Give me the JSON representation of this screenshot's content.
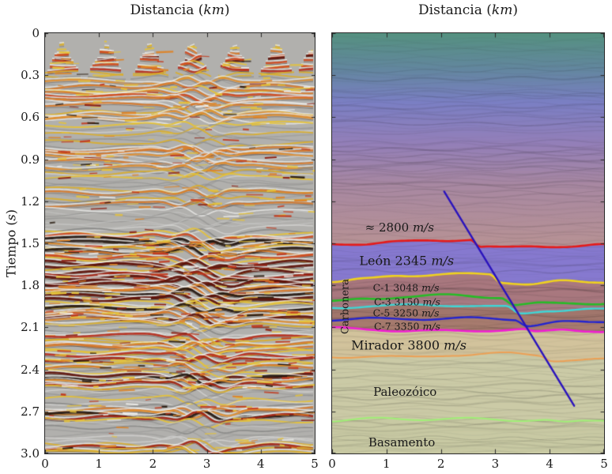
{
  "chart_data": {
    "type": "heatmap",
    "title": "",
    "x_axis": {
      "label_prefix": "Distancia (",
      "label_unit": "km",
      "label_suffix": ")",
      "ticks": [
        "0",
        "1",
        "2",
        "3",
        "4",
        "5"
      ],
      "range_km": [
        0,
        5
      ]
    },
    "y_axis": {
      "label_prefix": "Tiempo (",
      "label_unit": "s",
      "label_suffix": ")",
      "ticks": [
        "0",
        "0.3",
        "0.6",
        "0.9",
        "1.2",
        "1.5",
        "1.8",
        "2.1",
        "2.4",
        "2.7",
        "3.0"
      ],
      "range_s": [
        0,
        3
      ]
    },
    "panels": [
      {
        "id": "seismic-section",
        "kind": "migrated seismic amplitude section",
        "background": "#b1b0ad",
        "palette": {
          "weak": [
            "#cbcbc9",
            "#e3e3e1",
            "#979795",
            "#8a8a88"
          ],
          "medium": [
            "#e5c23a",
            "#d9ae2e"
          ],
          "strong": [
            "#d8792a",
            "#e18f31"
          ],
          "very_strong": [
            "#b92f1d",
            "#a32413",
            "#cf4a20"
          ],
          "extreme": [
            "#241710",
            "#5e120a"
          ],
          "highlight": "#efeeea",
          "speckles": [
            "#e4c23c",
            "#dd8428",
            "#c23a1e",
            "#8c2013",
            "#f0efec",
            "#2a1d12"
          ]
        },
        "strong_reflector_bands_s": [
          [
            0.18,
            0.5,
            0.1
          ],
          [
            0.45,
            0.45,
            0.06
          ],
          [
            0.62,
            0.3,
            0.05
          ],
          [
            0.9,
            0.38,
            0.08
          ],
          [
            1.17,
            0.32,
            0.05
          ],
          [
            1.5,
            0.78,
            0.05
          ],
          [
            1.66,
            0.5,
            0.06
          ],
          [
            1.84,
            0.8,
            0.08
          ],
          [
            2.02,
            0.6,
            0.05
          ],
          [
            2.18,
            0.42,
            0.04
          ],
          [
            2.32,
            0.55,
            0.05
          ],
          [
            2.47,
            0.55,
            0.04
          ],
          [
            2.7,
            0.62,
            0.04
          ],
          [
            2.95,
            0.35,
            0.04
          ]
        ],
        "near_surface_wedge_apexes_km": [
          0.32,
          1.13,
          1.94,
          2.73,
          3.52,
          4.3,
          5.0
        ],
        "fault_disturbance_km": 3.0
      },
      {
        "id": "velocity-model",
        "kind": "interval velocity model over seismic",
        "texture_background": "#c2c1be",
        "gradient_stops": [
          {
            "pos": 0,
            "color": "#559180"
          },
          {
            "pos": 0.17,
            "color": "#63879f"
          },
          {
            "pos": 0.33,
            "color": "#7b7fc4"
          },
          {
            "pos": 0.52,
            "color": "#937fb9"
          },
          {
            "pos": 0.72,
            "color": "#a888a2"
          },
          {
            "pos": 1,
            "color": "#b79295"
          }
        ],
        "layers": [
          {
            "name": "overburden",
            "velocity_mps": 2800,
            "fill": "gradient",
            "top": "surface"
          },
          {
            "name": "León",
            "velocity_mps": 2345,
            "fill": "#8679cf",
            "top": "red"
          },
          {
            "name": "Carbonera C-1",
            "velocity_mps": 3048,
            "fill": "#a9787f",
            "top": "yellow"
          },
          {
            "name": "Carbonera C-3",
            "velocity_mps": 3150,
            "fill": "#a67b82",
            "top": "green"
          },
          {
            "name": "Carbonera C-5",
            "velocity_mps": 3250,
            "fill": "#a1766c",
            "top": "cyan"
          },
          {
            "name": "Carbonera C-7",
            "velocity_mps": 3350,
            "fill": "#a77b6e",
            "top": "blue"
          },
          {
            "name": "Mirador",
            "velocity_mps": 3800,
            "fill": "#d2c39c",
            "top": "magenta"
          },
          {
            "name": "Paleozóico",
            "fill": "#cbcaa6",
            "top": "orange"
          },
          {
            "name": "Basamento",
            "fill": "#c8c9a3",
            "top": "lightgreen"
          }
        ],
        "horizons": [
          {
            "name": "red",
            "color": "#e41b1b",
            "width": 2.6,
            "points": [
              [
                0,
                1.505
              ],
              [
                0.5,
                1.5
              ],
              [
                1.2,
                1.485
              ],
              [
                2.0,
                1.475
              ],
              [
                2.55,
                1.47
              ],
              [
                2.72,
                1.525
              ],
              [
                3.2,
                1.535
              ],
              [
                3.8,
                1.525
              ],
              [
                4.4,
                1.525
              ],
              [
                5,
                1.515
              ]
            ]
          },
          {
            "name": "yellow",
            "color": "#efd11f",
            "width": 2.6,
            "points": [
              [
                0,
                1.765
              ],
              [
                0.6,
                1.75
              ],
              [
                1.3,
                1.73
              ],
              [
                2.1,
                1.72
              ],
              [
                2.9,
                1.73
              ],
              [
                3.1,
                1.785
              ],
              [
                3.6,
                1.79
              ],
              [
                4.2,
                1.77
              ],
              [
                4.7,
                1.78
              ],
              [
                5,
                1.775
              ]
            ]
          },
          {
            "name": "green",
            "color": "#27bb27",
            "width": 2.6,
            "points": [
              [
                0,
                1.915
              ],
              [
                0.7,
                1.895
              ],
              [
                1.4,
                1.885
              ],
              [
                2.2,
                1.875
              ],
              [
                3.1,
                1.885
              ],
              [
                3.35,
                1.94
              ],
              [
                3.9,
                1.925
              ],
              [
                4.5,
                1.92
              ],
              [
                5,
                1.925
              ]
            ]
          },
          {
            "name": "cyan",
            "color": "#3fd6d6",
            "width": 2.4,
            "points": [
              [
                0,
                1.965
              ],
              [
                0.8,
                1.95
              ],
              [
                1.6,
                1.945
              ],
              [
                2.4,
                1.94
              ],
              [
                3.2,
                1.95
              ],
              [
                3.45,
                2.0
              ],
              [
                4.0,
                1.975
              ],
              [
                4.6,
                1.97
              ],
              [
                5,
                1.975
              ]
            ]
          },
          {
            "name": "blue",
            "color": "#2424cf",
            "width": 2.4,
            "points": [
              [
                0,
                2.05
              ],
              [
                0.8,
                2.04
              ],
              [
                1.6,
                2.035
              ],
              [
                2.4,
                2.03
              ],
              [
                3.35,
                2.04
              ],
              [
                3.6,
                2.085
              ],
              [
                4.2,
                2.065
              ],
              [
                4.7,
                2.07
              ],
              [
                5,
                2.065
              ]
            ]
          },
          {
            "name": "magenta",
            "color": "#ef1fd1",
            "width": 2.6,
            "points": [
              [
                0,
                2.105
              ],
              [
                0.7,
                2.11
              ],
              [
                1.5,
                2.12
              ],
              [
                2.3,
                2.125
              ],
              [
                3.5,
                2.12
              ],
              [
                3.75,
                2.14
              ],
              [
                4.3,
                2.12
              ],
              [
                4.7,
                2.125
              ],
              [
                5,
                2.13
              ]
            ]
          },
          {
            "name": "orange",
            "color": "#eca055",
            "width": 2.0,
            "points": [
              [
                0,
                2.31
              ],
              [
                0.7,
                2.3
              ],
              [
                1.5,
                2.315
              ],
              [
                2.3,
                2.3
              ],
              [
                3.2,
                2.29
              ],
              [
                3.8,
                2.3
              ],
              [
                4.05,
                2.335
              ],
              [
                4.5,
                2.33
              ],
              [
                5,
                2.325
              ]
            ]
          },
          {
            "name": "lightgreen",
            "color": "#a0ef76",
            "width": 2.0,
            "points": [
              [
                0,
                2.765
              ],
              [
                0.8,
                2.755
              ],
              [
                1.6,
                2.76
              ],
              [
                2.4,
                2.755
              ],
              [
                3.2,
                2.76
              ],
              [
                3.9,
                2.755
              ],
              [
                4.3,
                2.775
              ],
              [
                4.7,
                2.765
              ],
              [
                5,
                2.76
              ]
            ]
          }
        ],
        "fault": {
          "name": "normal fault",
          "color": "#2a13bd",
          "width": 2.4,
          "points": [
            [
              2.06,
              1.13
            ],
            [
              4.45,
              2.66
            ]
          ]
        },
        "labels": [
          {
            "text": "≈ 2800",
            "unit": "m/s",
            "km": 1.24,
            "t": 1.39,
            "size": 15
          },
          {
            "text": "León  2345",
            "unit": "m/s",
            "km": 1.37,
            "t": 1.625,
            "size": 16
          },
          {
            "text": "C-1  3048",
            "unit": "m/s",
            "km": 1.36,
            "t": 1.815,
            "size": 12.5
          },
          {
            "text": "C-3  3150",
            "unit": "m/s",
            "km": 1.38,
            "t": 1.92,
            "size": 12.5
          },
          {
            "text": "C-5  3250",
            "unit": "m/s",
            "km": 1.36,
            "t": 1.995,
            "size": 12.5
          },
          {
            "text": "C-7  3350",
            "unit": "m/s",
            "km": 1.38,
            "t": 2.09,
            "size": 12.5
          },
          {
            "text": "Carbonera",
            "unit": "",
            "km": 0.25,
            "t": 1.95,
            "size": 13,
            "rotate": -90
          },
          {
            "text": "Mirador  3800",
            "unit": "m/s",
            "km": 1.41,
            "t": 2.23,
            "size": 16
          },
          {
            "text": "Paleozóico",
            "unit": "",
            "km": 1.34,
            "t": 2.56,
            "size": 15
          },
          {
            "text": "Basamento",
            "unit": "",
            "km": 1.28,
            "t": 2.92,
            "size": 15
          }
        ]
      }
    ]
  }
}
